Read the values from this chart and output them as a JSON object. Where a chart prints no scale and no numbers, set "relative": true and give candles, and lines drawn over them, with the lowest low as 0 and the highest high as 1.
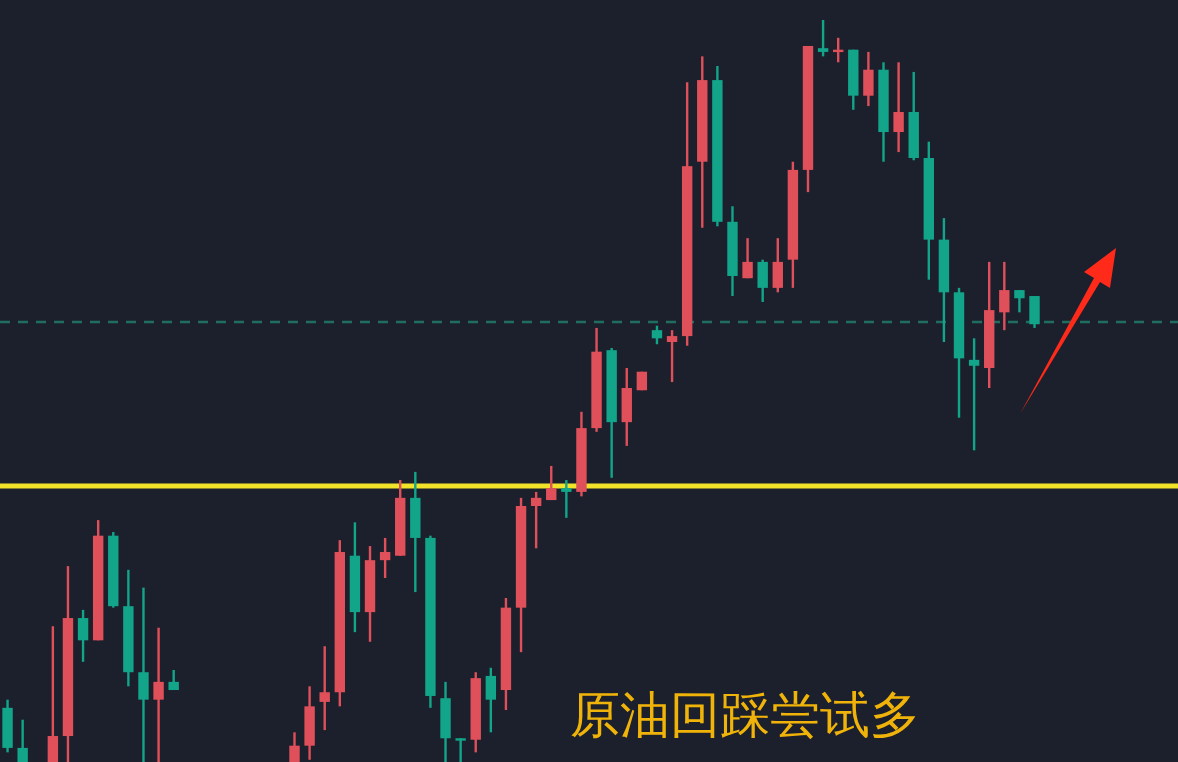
{
  "chart_data": {
    "type": "candlestick",
    "relative": true,
    "categories": [
      null,
      null,
      null,
      null,
      null,
      null,
      null,
      null,
      null,
      null,
      null,
      null,
      null,
      null,
      null,
      null,
      null,
      null,
      null,
      null,
      null,
      null,
      null,
      null,
      null,
      null,
      null,
      null,
      null,
      null,
      null,
      null,
      null,
      null,
      null,
      null,
      null,
      null,
      null,
      null,
      null,
      null,
      null,
      null,
      null,
      null,
      null,
      null,
      null,
      null,
      null,
      null,
      null,
      null,
      null,
      null,
      null,
      null,
      null,
      null,
      null,
      null,
      null,
      null,
      null,
      null,
      null,
      null,
      null,
      null,
      null,
      null,
      null,
      null,
      null,
      null,
      null,
      null
    ],
    "ohlc": [
      [
        0.073,
        0.084,
        0.013,
        0.019
      ],
      [
        0.019,
        0.057,
        0,
        0
      ],
      null,
      [
        0,
        0.183,
        0,
        0.035
      ],
      [
        0.035,
        0.264,
        0,
        0.194
      ],
      [
        0.194,
        0.205,
        0.135,
        0.164
      ],
      [
        0.164,
        0.326,
        0.164,
        0.305
      ],
      [
        0.305,
        0.31,
        0.208,
        0.21
      ],
      [
        0.21,
        0.259,
        0.102,
        0.121
      ],
      [
        0.121,
        0.235,
        0,
        0.084
      ],
      [
        0.084,
        0.181,
        0,
        0.108
      ],
      [
        0.108,
        0.124,
        0.097,
        0.097
      ],
      null,
      null,
      null,
      null,
      null,
      null,
      null,
      [
        0,
        0.04,
        0,
        0.022
      ],
      [
        0.022,
        0.102,
        0.003,
        0.075
      ],
      [
        0.081,
        0.156,
        0.043,
        0.094
      ],
      [
        0.094,
        0.299,
        0.075,
        0.283
      ],
      [
        0.278,
        0.323,
        0.175,
        0.202
      ],
      [
        0.202,
        0.291,
        0.162,
        0.272
      ],
      [
        0.272,
        0.302,
        0.248,
        0.283
      ],
      [
        0.278,
        0.38,
        0.278,
        0.356
      ],
      [
        0.356,
        0.391,
        0.229,
        0.302
      ],
      [
        0.302,
        0.305,
        0.073,
        0.089
      ],
      [
        0.086,
        0.108,
        0,
        0.032
      ],
      [
        0.032,
        0.032,
        0,
        0.03
      ],
      [
        0.03,
        0.121,
        0.013,
        0.113
      ],
      [
        0.116,
        0.127,
        0.04,
        0.084
      ],
      [
        0.097,
        0.221,
        0.07,
        0.208
      ],
      [
        0.208,
        0.356,
        0.148,
        0.345
      ],
      [
        0.345,
        0.364,
        0.288,
        0.356
      ],
      [
        0.353,
        0.399,
        0.353,
        0.369
      ],
      [
        0.369,
        0.38,
        0.329,
        0.364
      ],
      [
        0.364,
        0.472,
        0.358,
        0.45
      ],
      [
        0.45,
        0.585,
        0.445,
        0.553
      ],
      [
        0.555,
        0.558,
        0.383,
        0.458
      ],
      [
        0.458,
        0.531,
        0.426,
        0.504
      ],
      [
        0.501,
        0.526,
        0.501,
        0.526
      ],
      [
        0.582,
        0.588,
        0.563,
        0.571
      ],
      [
        0.566,
        0.582,
        0.512,
        0.574
      ],
      [
        0.574,
        0.916,
        0.561,
        0.803
      ],
      [
        0.809,
        0.951,
        0.72,
        0.919
      ],
      [
        0.919,
        0.938,
        0.722,
        0.728
      ],
      [
        0.728,
        0.749,
        0.628,
        0.655
      ],
      [
        0.652,
        0.706,
        0.652,
        0.674
      ],
      [
        0.674,
        0.677,
        0.62,
        0.639
      ],
      [
        0.639,
        0.706,
        0.633,
        0.674
      ],
      [
        0.677,
        0.809,
        0.639,
        0.798
      ],
      [
        0.798,
        0.965,
        0.768,
        0.965
      ],
      [
        0.962,
        1,
        0.951,
        0.957
      ],
      [
        0.958,
        0.976,
        0.943,
        0.96
      ],
      [
        0.96,
        0.96,
        0.879,
        0.898
      ],
      [
        0.898,
        0.957,
        0.884,
        0.933
      ],
      [
        0.933,
        0.943,
        0.809,
        0.849
      ],
      [
        0.849,
        0.943,
        0.822,
        0.876
      ],
      [
        0.876,
        0.93,
        0.811,
        0.814
      ],
      [
        0.814,
        0.836,
        0.65,
        0.704
      ],
      [
        0.704,
        0.733,
        0.566,
        0.633
      ],
      [
        0.633,
        0.639,
        0.464,
        0.544
      ],
      [
        0.542,
        0.571,
        0.42,
        0.534
      ],
      [
        0.531,
        0.674,
        0.504,
        0.609
      ],
      [
        0.606,
        0.674,
        0.582,
        0.636
      ],
      [
        0.636,
        0.636,
        0.606,
        0.625
      ],
      [
        0.628,
        0.628,
        0.585,
        0.59
      ],
      null,
      null,
      null,
      null,
      null,
      null,
      null,
      null,
      null
    ],
    "ref_lines": [
      {
        "axis": "y",
        "value": 0.372,
        "color": "#f2e22a"
      },
      {
        "axis": "y",
        "value": 0.593,
        "color": "#1f6e60",
        "line_style": "dashed"
      }
    ],
    "annotations": [
      "原油回踩尝试多"
    ]
  }
}
